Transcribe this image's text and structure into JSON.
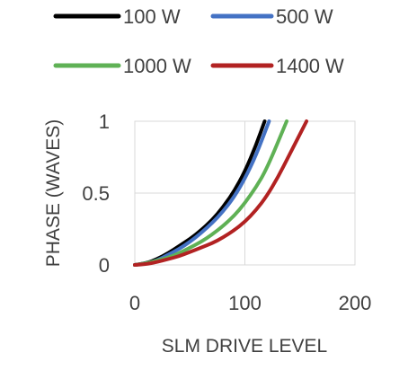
{
  "chart_data": {
    "type": "line",
    "title": "",
    "xlabel": "SLM DRIVE LEVEL",
    "ylabel": "PHASE (WAVES)",
    "xlim": [
      0,
      200
    ],
    "ylim": [
      0,
      1
    ],
    "x_ticks": [
      "0",
      "100",
      "200"
    ],
    "y_ticks": [
      "0",
      "0.5",
      "1"
    ],
    "grid": true,
    "legend_position": "top",
    "series": [
      {
        "name": "100 W",
        "color": "#000000",
        "x": [
          0,
          10,
          20,
          30,
          40,
          50,
          60,
          70,
          80,
          90,
          100,
          110,
          118
        ],
        "y": [
          0,
          0.01,
          0.04,
          0.08,
          0.13,
          0.18,
          0.24,
          0.31,
          0.4,
          0.51,
          0.65,
          0.83,
          1.0
        ]
      },
      {
        "name": "500 W",
        "color": "#4472C4",
        "x": [
          0,
          10,
          20,
          30,
          40,
          50,
          60,
          70,
          80,
          90,
          100,
          110,
          122
        ],
        "y": [
          0,
          0.01,
          0.03,
          0.07,
          0.11,
          0.16,
          0.22,
          0.29,
          0.37,
          0.47,
          0.6,
          0.76,
          1.0
        ]
      },
      {
        "name": "1000 W",
        "color": "#5FB155",
        "x": [
          0,
          10,
          20,
          30,
          40,
          50,
          60,
          70,
          80,
          90,
          100,
          110,
          120,
          138
        ],
        "y": [
          0,
          0.01,
          0.03,
          0.05,
          0.08,
          0.12,
          0.16,
          0.21,
          0.27,
          0.34,
          0.43,
          0.54,
          0.67,
          1.0
        ]
      },
      {
        "name": "1400 W",
        "color": "#B22222",
        "x": [
          0,
          10,
          20,
          30,
          40,
          50,
          60,
          70,
          80,
          90,
          100,
          110,
          120,
          130,
          140,
          156
        ],
        "y": [
          0,
          0.005,
          0.02,
          0.04,
          0.06,
          0.09,
          0.12,
          0.15,
          0.19,
          0.24,
          0.3,
          0.38,
          0.48,
          0.61,
          0.76,
          1.0
        ]
      }
    ]
  }
}
